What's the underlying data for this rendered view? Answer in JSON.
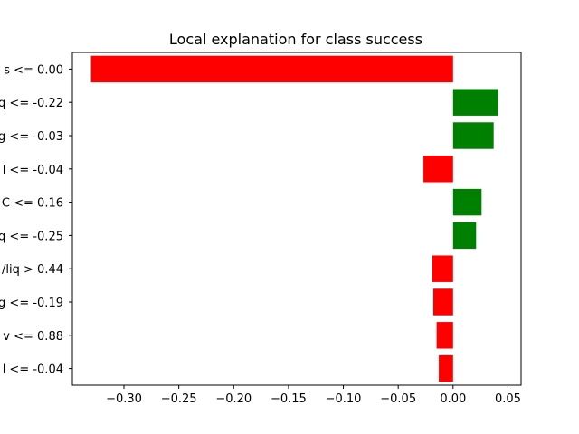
{
  "chart_data": {
    "type": "bar",
    "orientation": "horizontal",
    "title": "Local explanation for class success",
    "xlabel": "",
    "ylabel": "",
    "xlim": [
      -0.347,
      0.062
    ],
    "xticks": [
      -0.3,
      -0.25,
      -0.2,
      -0.15,
      -0.1,
      -0.05,
      0.0,
      0.05
    ],
    "xtick_labels": [
      "−0.30",
      "−0.25",
      "−0.20",
      "−0.15",
      "−0.10",
      "−0.05",
      "0.00",
      "0.05"
    ],
    "categories": [
      "s <= 0.00",
      "q <= -0.22",
      "g <= -0.03",
      "l <= -0.04",
      "C <= 0.16",
      "q <= -0.25",
      "/liq > 0.44",
      "g <= -0.19",
      "v <= 0.88",
      "l <= -0.04"
    ],
    "values": [
      -0.33,
      0.041,
      0.037,
      -0.027,
      0.026,
      0.021,
      -0.019,
      -0.018,
      -0.015,
      -0.013
    ],
    "colors": {
      "positive": "#008000",
      "negative": "#ff0000"
    },
    "grid": false,
    "legend": "none"
  }
}
